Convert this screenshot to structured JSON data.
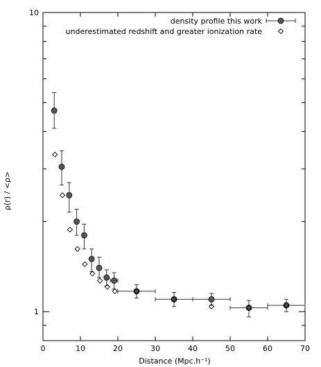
{
  "chart_data": {
    "type": "scatter",
    "xlabel": "Distance (Mpc.h⁻¹)",
    "ylabel": "ρ(r) / <ρ>",
    "xlim": [
      0,
      70
    ],
    "ylim": [
      0.8,
      10
    ],
    "yscale": "log",
    "x_ticks": [
      0,
      10,
      20,
      30,
      40,
      50,
      60,
      70
    ],
    "y_tick_labels": [
      {
        "value": 1,
        "label": "1"
      },
      {
        "value": 10,
        "label": "10"
      }
    ],
    "legend_position": "top-right",
    "series": [
      {
        "name": "density profile this work",
        "marker": "filled-circle-errorbars",
        "color": "#555555",
        "points": [
          {
            "x": 3,
            "y": 4.7,
            "xerr": 0,
            "ylow": 4.1,
            "yhigh": 5.4
          },
          {
            "x": 5,
            "y": 3.05,
            "xerr": 0,
            "ylow": 2.65,
            "yhigh": 3.45
          },
          {
            "x": 7,
            "y": 2.45,
            "xerr": 0,
            "ylow": 2.15,
            "yhigh": 2.7
          },
          {
            "x": 9,
            "y": 2.0,
            "xerr": 0,
            "ylow": 1.8,
            "yhigh": 2.2
          },
          {
            "x": 11,
            "y": 1.8,
            "xerr": 0,
            "ylow": 1.62,
            "yhigh": 1.96
          },
          {
            "x": 13,
            "y": 1.5,
            "xerr": 0,
            "ylow": 1.36,
            "yhigh": 1.62
          },
          {
            "x": 15,
            "y": 1.4,
            "xerr": 0,
            "ylow": 1.3,
            "yhigh": 1.52
          },
          {
            "x": 17,
            "y": 1.3,
            "xerr": 0,
            "ylow": 1.22,
            "yhigh": 1.38
          },
          {
            "x": 19,
            "y": 1.27,
            "xerr": 1,
            "ylow": 1.19,
            "yhigh": 1.35
          },
          {
            "x": 25,
            "y": 1.17,
            "xerr": 5,
            "ylow": 1.11,
            "yhigh": 1.23
          },
          {
            "x": 35,
            "y": 1.1,
            "xerr": 5,
            "ylow": 1.04,
            "yhigh": 1.16
          },
          {
            "x": 45,
            "y": 1.1,
            "xerr": 5,
            "ylow": 1.05,
            "yhigh": 1.15
          },
          {
            "x": 55,
            "y": 1.03,
            "xerr": 5,
            "ylow": 0.96,
            "yhigh": 1.09
          },
          {
            "x": 65,
            "y": 1.05,
            "xerr": 5,
            "ylow": 1.0,
            "yhigh": 1.1
          }
        ]
      },
      {
        "name": "underestimated redshift and greater ionization rate",
        "marker": "open-diamond",
        "color": "#000000",
        "points": [
          {
            "x": 3.2,
            "y": 3.35
          },
          {
            "x": 5.2,
            "y": 2.45
          },
          {
            "x": 7.2,
            "y": 1.88
          },
          {
            "x": 9.2,
            "y": 1.62
          },
          {
            "x": 11.2,
            "y": 1.44
          },
          {
            "x": 13.2,
            "y": 1.34
          },
          {
            "x": 15.2,
            "y": 1.27
          },
          {
            "x": 17.2,
            "y": 1.21
          },
          {
            "x": 19.2,
            "y": 1.17
          },
          {
            "x": 25,
            "y": 1.17
          },
          {
            "x": 35,
            "y": 1.1
          },
          {
            "x": 45,
            "y": 1.04
          },
          {
            "x": 55,
            "y": 1.03
          },
          {
            "x": 65,
            "y": 1.05
          }
        ]
      }
    ]
  }
}
